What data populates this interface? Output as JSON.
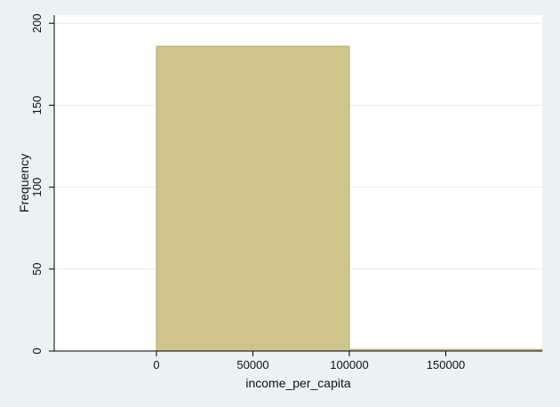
{
  "chart_data": {
    "type": "bar",
    "title": "",
    "xlabel": "income_per_capita",
    "ylabel": "Frequency",
    "xlim": [
      -53000,
      200000
    ],
    "ylim": [
      0,
      205
    ],
    "x_ticks": [
      0,
      50000,
      100000,
      150000
    ],
    "x_tick_labels": [
      "0",
      "50000",
      "100000",
      "150000"
    ],
    "y_ticks": [
      0,
      50,
      100,
      150,
      200
    ],
    "y_tick_labels": [
      "0",
      "50",
      "100",
      "150",
      "200"
    ],
    "grid": "horizontal",
    "legend": "none",
    "bins": [
      {
        "x_start": 0,
        "x_end": 100000,
        "frequency": 186
      },
      {
        "x_start": 100000,
        "x_end": 200000,
        "frequency": 1
      }
    ],
    "colors": {
      "background": "#eaf2f3",
      "plot_background": "#ffffff",
      "bar_fill": "#cfc48b",
      "bar_stroke": "#b8ab65",
      "grid": "#e6ecee",
      "axis": "#000000"
    }
  }
}
